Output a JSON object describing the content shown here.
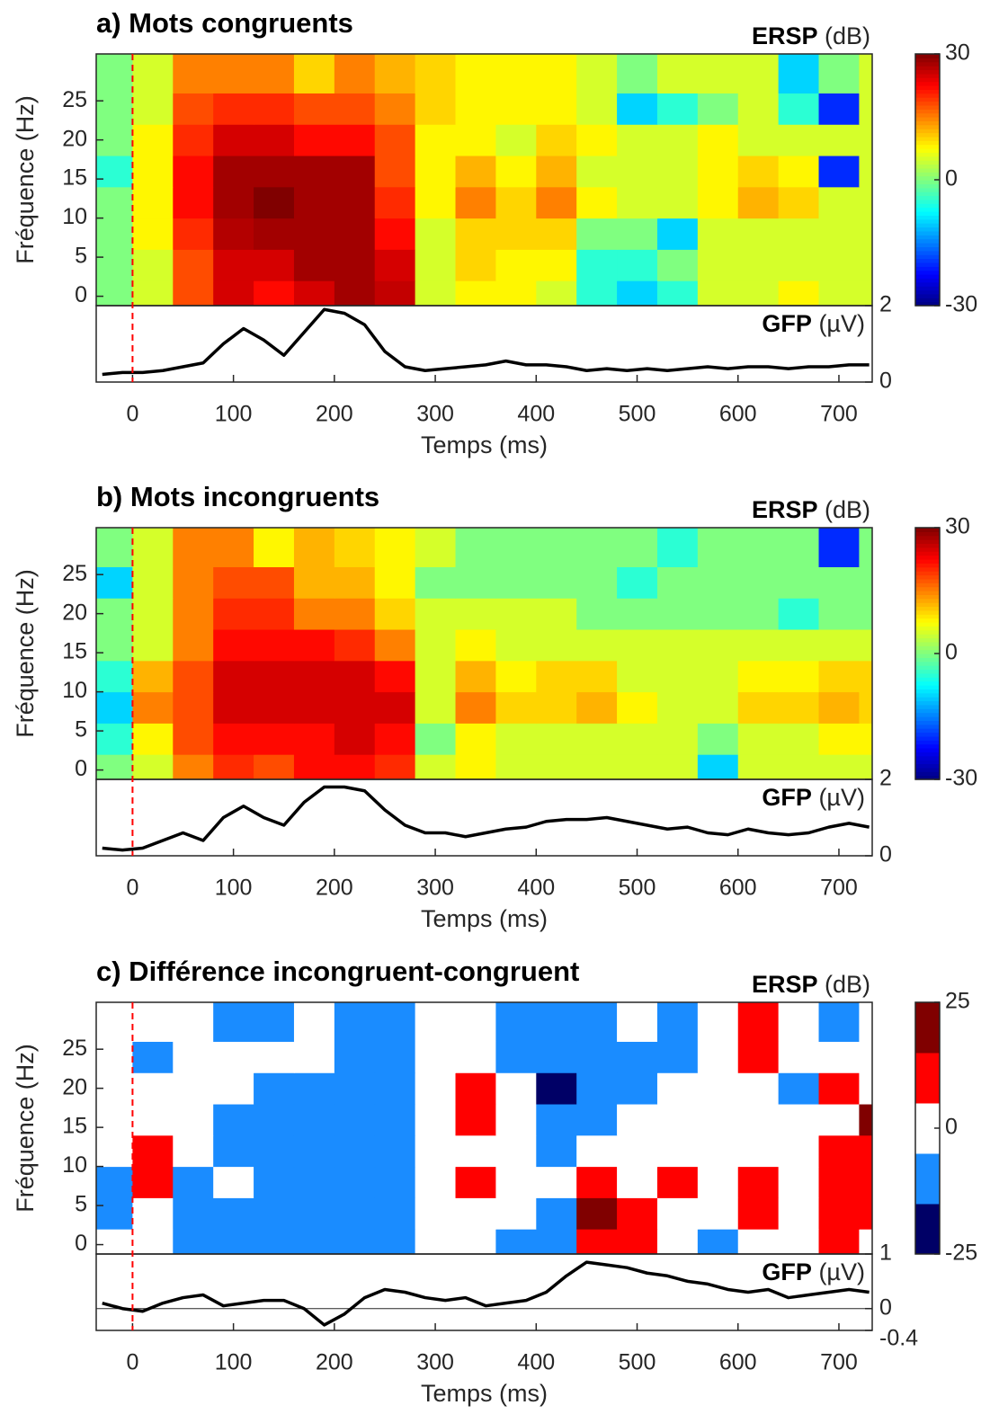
{
  "chart_data": [
    {
      "type": "heatmap",
      "title": "a) Mots congruents",
      "ersp_label": "ERSP",
      "ersp_unit": "(dB)",
      "x_label": "Temps (ms)",
      "y_label": "Fréquence (Hz)",
      "x": [
        -20,
        20,
        60,
        100,
        140,
        180,
        220,
        260,
        300,
        340,
        380,
        420,
        460,
        500,
        540,
        580,
        620,
        660,
        700,
        740
      ],
      "y": [
        0,
        4,
        8,
        12,
        16,
        20,
        24,
        28
      ],
      "z": [
        [
          0,
          5,
          18,
          25,
          22,
          25,
          28,
          26,
          5,
          8,
          8,
          5,
          -5,
          -10,
          -5,
          5,
          5,
          8,
          5,
          5
        ],
        [
          0,
          5,
          18,
          25,
          25,
          28,
          28,
          25,
          5,
          10,
          8,
          8,
          -5,
          -5,
          0,
          5,
          5,
          5,
          5,
          5
        ],
        [
          0,
          8,
          20,
          27,
          28,
          28,
          28,
          22,
          5,
          10,
          10,
          10,
          0,
          0,
          -10,
          5,
          5,
          5,
          5,
          5
        ],
        [
          0,
          8,
          22,
          28,
          30,
          28,
          28,
          20,
          8,
          15,
          10,
          15,
          8,
          5,
          5,
          8,
          12,
          10,
          5,
          5
        ],
        [
          -5,
          8,
          22,
          28,
          28,
          28,
          28,
          18,
          8,
          12,
          8,
          12,
          5,
          5,
          5,
          8,
          10,
          8,
          -20,
          5
        ],
        [
          0,
          8,
          20,
          25,
          25,
          22,
          22,
          18,
          8,
          8,
          5,
          10,
          8,
          5,
          5,
          8,
          5,
          5,
          5,
          5
        ],
        [
          0,
          5,
          18,
          20,
          20,
          18,
          18,
          15,
          10,
          8,
          8,
          8,
          5,
          -10,
          -5,
          0,
          5,
          -5,
          -20,
          5
        ],
        [
          0,
          5,
          15,
          15,
          15,
          10,
          15,
          12,
          10,
          8,
          8,
          8,
          5,
          0,
          5,
          5,
          5,
          -10,
          0,
          5
        ]
      ],
      "xlim": [
        -36,
        733
      ],
      "ylim": [
        -1.2,
        31
      ],
      "xticks": [
        0,
        100,
        200,
        300,
        400,
        500,
        600,
        700
      ],
      "yticks": [
        0,
        5,
        10,
        15,
        20,
        25
      ],
      "clim": [
        -30,
        30
      ],
      "cticks": [
        -30,
        0,
        30
      ],
      "colormap": "jet",
      "vline": 0,
      "vline_color": "#ff0000",
      "gfp": {
        "label": "GFP",
        "unit": "(µV)",
        "x": [
          -30,
          -10,
          10,
          30,
          50,
          70,
          90,
          110,
          130,
          150,
          170,
          190,
          210,
          230,
          250,
          270,
          290,
          310,
          330,
          350,
          370,
          390,
          410,
          430,
          450,
          470,
          490,
          510,
          530,
          550,
          570,
          590,
          610,
          630,
          650,
          670,
          690,
          710,
          730
        ],
        "values": [
          0.2,
          0.25,
          0.25,
          0.3,
          0.4,
          0.5,
          1.0,
          1.4,
          1.1,
          0.7,
          1.3,
          1.9,
          1.8,
          1.5,
          0.8,
          0.4,
          0.3,
          0.35,
          0.4,
          0.45,
          0.55,
          0.45,
          0.45,
          0.4,
          0.3,
          0.35,
          0.3,
          0.35,
          0.3,
          0.35,
          0.4,
          0.35,
          0.4,
          0.4,
          0.35,
          0.4,
          0.4,
          0.45,
          0.45
        ],
        "ylim": [
          0,
          2
        ],
        "yticks": [
          0,
          2
        ],
        "color": "#000000",
        "zero_line": false
      }
    },
    {
      "type": "heatmap",
      "title": "b) Mots incongruents",
      "ersp_label": "ERSP",
      "ersp_unit": "(dB)",
      "x_label": "Temps (ms)",
      "y_label": "Fréquence (Hz)",
      "x": [
        -20,
        20,
        60,
        100,
        140,
        180,
        220,
        260,
        300,
        340,
        380,
        420,
        460,
        500,
        540,
        580,
        620,
        660,
        700,
        740
      ],
      "y": [
        0,
        4,
        8,
        12,
        16,
        20,
        24,
        28
      ],
      "z": [
        [
          0,
          5,
          15,
          20,
          18,
          22,
          22,
          20,
          5,
          8,
          5,
          5,
          5,
          5,
          5,
          -10,
          5,
          5,
          5,
          5
        ],
        [
          -5,
          8,
          18,
          22,
          22,
          22,
          25,
          22,
          0,
          8,
          5,
          5,
          5,
          5,
          5,
          0,
          5,
          5,
          8,
          8
        ],
        [
          -10,
          15,
          18,
          25,
          25,
          25,
          25,
          25,
          5,
          15,
          10,
          10,
          12,
          8,
          5,
          5,
          10,
          10,
          12,
          10
        ],
        [
          -5,
          12,
          18,
          25,
          25,
          25,
          25,
          22,
          5,
          12,
          8,
          10,
          10,
          5,
          5,
          5,
          8,
          8,
          10,
          10
        ],
        [
          0,
          5,
          15,
          22,
          22,
          22,
          20,
          15,
          5,
          8,
          5,
          5,
          5,
          5,
          5,
          5,
          5,
          5,
          5,
          5
        ],
        [
          0,
          5,
          15,
          20,
          20,
          15,
          15,
          10,
          5,
          5,
          5,
          5,
          0,
          0,
          0,
          0,
          0,
          -5,
          0,
          0
        ],
        [
          -10,
          5,
          15,
          18,
          18,
          12,
          12,
          8,
          0,
          0,
          0,
          0,
          0,
          -5,
          0,
          0,
          0,
          0,
          0,
          0
        ],
        [
          0,
          5,
          15,
          15,
          8,
          12,
          10,
          8,
          5,
          0,
          0,
          0,
          0,
          0,
          -5,
          0,
          0,
          0,
          -20,
          0
        ]
      ],
      "xlim": [
        -36,
        733
      ],
      "ylim": [
        -1.2,
        31
      ],
      "xticks": [
        0,
        100,
        200,
        300,
        400,
        500,
        600,
        700
      ],
      "yticks": [
        0,
        5,
        10,
        15,
        20,
        25
      ],
      "clim": [
        -30,
        30
      ],
      "cticks": [
        -30,
        0,
        30
      ],
      "colormap": "jet",
      "vline": 0,
      "vline_color": "#ff0000",
      "gfp": {
        "label": "GFP",
        "unit": "(µV)",
        "x": [
          -30,
          -10,
          10,
          30,
          50,
          70,
          90,
          110,
          130,
          150,
          170,
          190,
          210,
          230,
          250,
          270,
          290,
          310,
          330,
          350,
          370,
          390,
          410,
          430,
          450,
          470,
          490,
          510,
          530,
          550,
          570,
          590,
          610,
          630,
          650,
          670,
          690,
          710,
          730
        ],
        "values": [
          0.2,
          0.15,
          0.2,
          0.4,
          0.6,
          0.4,
          1.0,
          1.3,
          1.0,
          0.8,
          1.4,
          1.8,
          1.8,
          1.7,
          1.2,
          0.8,
          0.6,
          0.6,
          0.5,
          0.6,
          0.7,
          0.75,
          0.9,
          0.95,
          0.95,
          1.0,
          0.9,
          0.8,
          0.7,
          0.75,
          0.6,
          0.55,
          0.7,
          0.6,
          0.55,
          0.6,
          0.75,
          0.85,
          0.75
        ],
        "ylim": [
          0,
          2
        ],
        "yticks": [
          0,
          2
        ],
        "color": "#000000",
        "zero_line": false
      }
    },
    {
      "type": "heatmap",
      "title": "c) Différence incongruent-congruent",
      "ersp_label": "ERSP",
      "ersp_unit": "(dB)",
      "x_label": "Temps (ms)",
      "y_label": "Fréquence (Hz)",
      "x": [
        -20,
        20,
        60,
        100,
        140,
        180,
        220,
        260,
        300,
        340,
        380,
        420,
        460,
        500,
        540,
        580,
        620,
        660,
        700,
        740
      ],
      "y": [
        0,
        4,
        8,
        12,
        16,
        20,
        24,
        28
      ],
      "z": [
        [
          0,
          0,
          -10,
          -10,
          -10,
          -10,
          -10,
          -10,
          0,
          0,
          -10,
          -10,
          10,
          10,
          0,
          -10,
          0,
          0,
          10,
          0
        ],
        [
          -10,
          0,
          -10,
          -10,
          -10,
          -10,
          -10,
          -10,
          0,
          0,
          0,
          -10,
          20,
          10,
          0,
          0,
          10,
          0,
          10,
          10
        ],
        [
          -10,
          10,
          -10,
          0,
          -10,
          -10,
          -10,
          -10,
          0,
          10,
          0,
          0,
          10,
          0,
          10,
          0,
          10,
          0,
          10,
          10
        ],
        [
          0,
          10,
          0,
          -10,
          -10,
          -10,
          -10,
          -10,
          0,
          0,
          0,
          -10,
          0,
          0,
          0,
          0,
          0,
          0,
          10,
          10
        ],
        [
          0,
          0,
          0,
          -10,
          -10,
          -10,
          -10,
          -10,
          0,
          10,
          0,
          -10,
          -10,
          0,
          0,
          0,
          0,
          0,
          0,
          20
        ],
        [
          0,
          0,
          0,
          0,
          -10,
          -10,
          -10,
          -10,
          0,
          10,
          0,
          -20,
          -10,
          -10,
          0,
          0,
          0,
          -10,
          10,
          0
        ],
        [
          0,
          -10,
          0,
          0,
          0,
          0,
          -10,
          -10,
          0,
          0,
          -10,
          -10,
          -10,
          -10,
          -10,
          0,
          10,
          0,
          0,
          0
        ],
        [
          0,
          0,
          0,
          -10,
          -10,
          0,
          -10,
          -10,
          0,
          0,
          -10,
          -10,
          -10,
          0,
          -10,
          0,
          10,
          0,
          -10,
          0
        ]
      ],
      "xlim": [
        -36,
        733
      ],
      "ylim": [
        -1.2,
        31
      ],
      "xticks": [
        0,
        100,
        200,
        300,
        400,
        500,
        600,
        700
      ],
      "yticks": [
        0,
        5,
        10,
        15,
        20,
        25
      ],
      "clim": [
        -25,
        25
      ],
      "cticks": [
        -25,
        0,
        25
      ],
      "colors": [
        "#000066",
        "#1a8cff",
        "#ffffff",
        "#ff0000",
        "#800000"
      ],
      "vline": 0,
      "vline_color": "#ff0000",
      "gfp": {
        "label": "GFP",
        "unit": "(µV)",
        "x": [
          -30,
          -10,
          10,
          30,
          50,
          70,
          90,
          110,
          130,
          150,
          170,
          190,
          210,
          230,
          250,
          270,
          290,
          310,
          330,
          350,
          370,
          390,
          410,
          430,
          450,
          470,
          490,
          510,
          530,
          550,
          570,
          590,
          610,
          630,
          650,
          670,
          690,
          710,
          730
        ],
        "values": [
          0.1,
          0,
          -0.05,
          0.1,
          0.2,
          0.25,
          0.05,
          0.1,
          0.15,
          0.15,
          0,
          -0.3,
          -0.1,
          0.2,
          0.35,
          0.3,
          0.2,
          0.15,
          0.2,
          0.05,
          0.1,
          0.15,
          0.3,
          0.6,
          0.85,
          0.8,
          0.75,
          0.65,
          0.6,
          0.5,
          0.45,
          0.35,
          0.3,
          0.35,
          0.2,
          0.25,
          0.3,
          0.35,
          0.3
        ],
        "ylim": [
          -0.4,
          1
        ],
        "yticks": [
          -0.4,
          0,
          1
        ],
        "color": "#000000",
        "zero_line": true
      }
    }
  ]
}
